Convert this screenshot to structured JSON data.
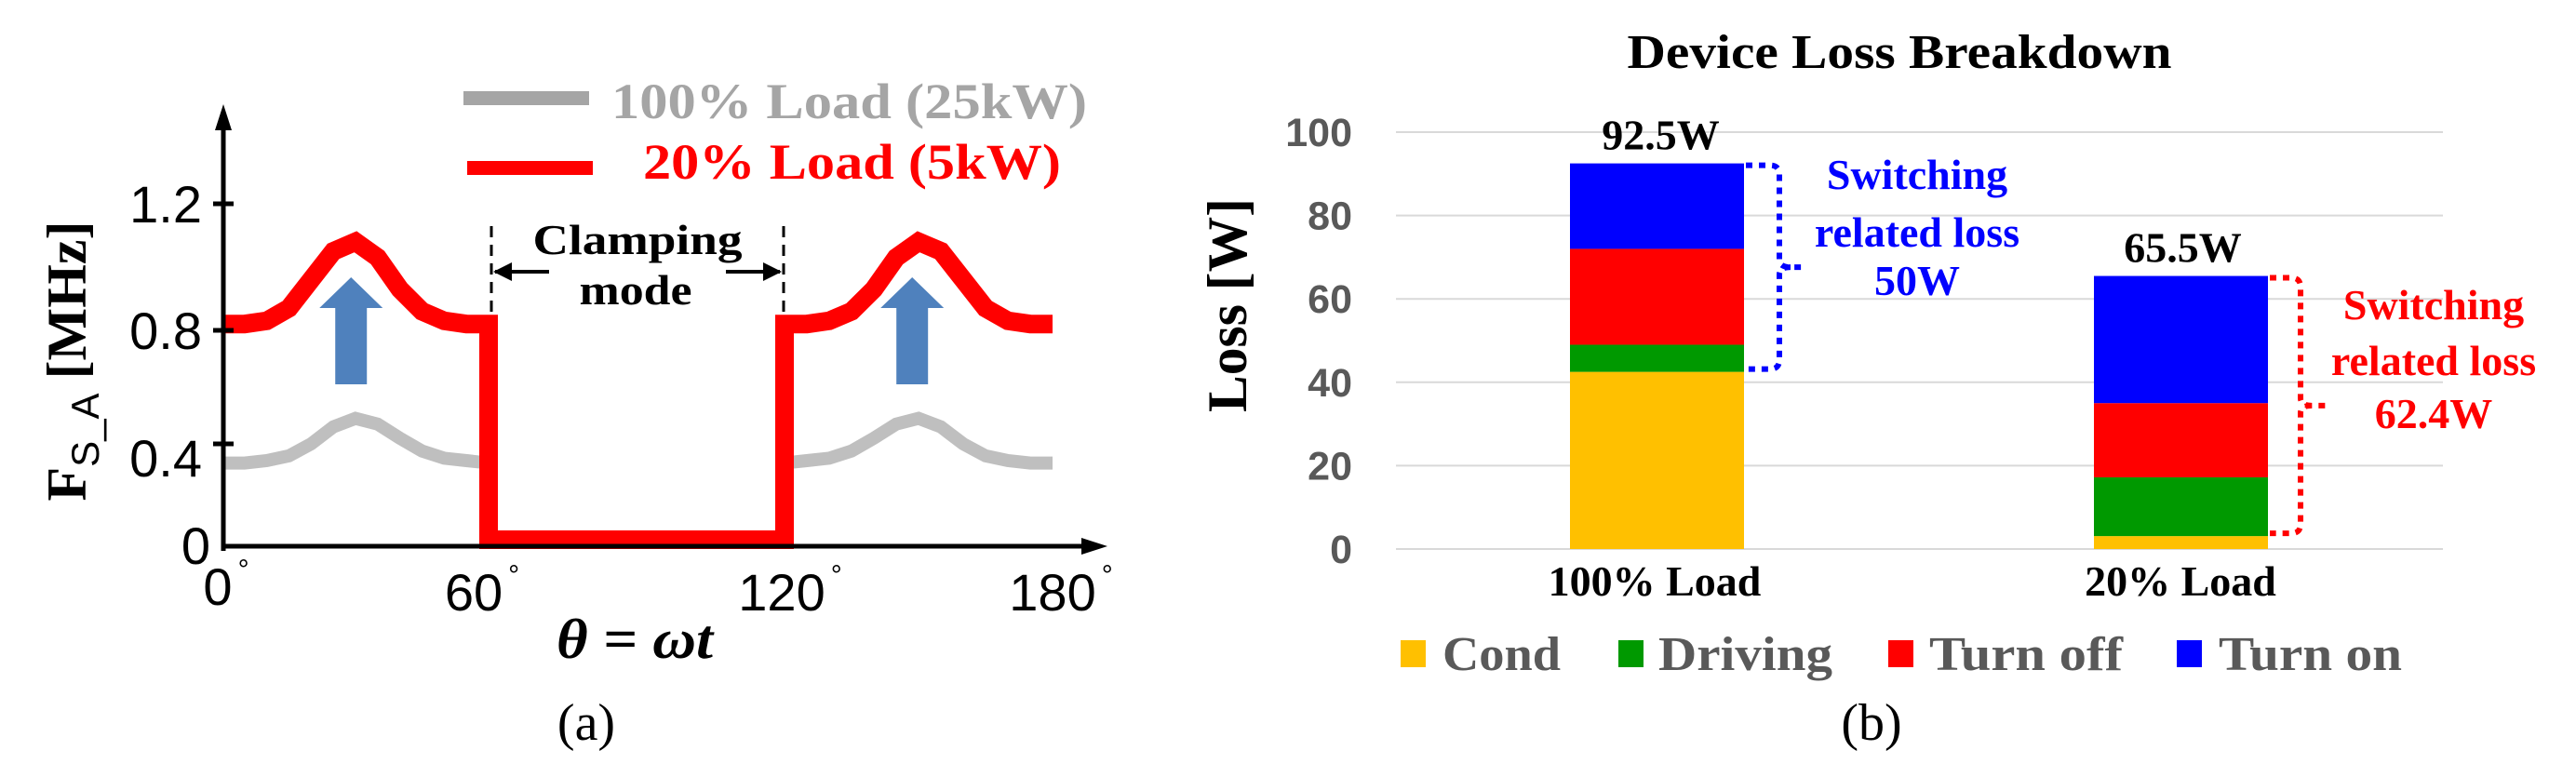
{
  "figure": {
    "panel_a_caption": "(a)",
    "panel_b_caption": "(b)"
  },
  "chart_data": [
    {
      "type": "line",
      "panel": "(a)",
      "title": "",
      "xlabel": "θ = ωt",
      "ylabel": "F",
      "ylabel_subscript": "S_A",
      "ylabel_unit": " [MHz]",
      "xlim": [
        0,
        180
      ],
      "ylim": [
        0,
        1.3
      ],
      "x_ticks": [
        {
          "value": 0,
          "label": "0",
          "suffix": "°"
        },
        {
          "value": 60,
          "label": "60",
          "suffix": "°"
        },
        {
          "value": 120,
          "label": "120",
          "suffix": "°"
        },
        {
          "value": 180,
          "label": "180",
          "suffix": "°"
        }
      ],
      "y_ticks": [
        {
          "value": 0,
          "label": "0"
        },
        {
          "value": 0.4,
          "label": "0.4"
        },
        {
          "value": 0.8,
          "label": "0.8"
        },
        {
          "value": 1.2,
          "label": "1.2"
        }
      ],
      "grid": false,
      "legend_position": "top",
      "series": [
        {
          "name": "100% Load (25kW)",
          "color": "#BFBFBF",
          "legend_color": "#A5A5A5",
          "segments": [
            {
              "x": [
                0,
                5,
                10,
                15,
                20,
                25,
                30,
                35,
                40,
                45,
                50,
                55,
                60
              ],
              "y": [
                0.32,
                0.32,
                0.33,
                0.35,
                0.4,
                0.46,
                0.49,
                0.47,
                0.42,
                0.37,
                0.34,
                0.33,
                0.32
              ]
            },
            {
              "x": [
                120,
                125,
                130,
                135,
                140,
                145,
                150,
                155,
                160,
                165,
                170,
                175,
                180
              ],
              "y": [
                0.32,
                0.33,
                0.34,
                0.37,
                0.42,
                0.47,
                0.49,
                0.46,
                0.4,
                0.35,
                0.33,
                0.32,
                0.32
              ]
            }
          ]
        },
        {
          "name": "20% Load (5kW)",
          "color": "#FF0000",
          "legend_color": "#FF0000",
          "segments": [
            {
              "x": [
                0,
                5,
                10,
                15,
                20,
                25,
                30,
                35,
                40,
                45,
                50,
                55,
                60,
                60,
                120,
                120,
                125,
                130,
                135,
                140,
                145,
                150,
                155,
                160,
                165,
                170,
                175,
                180
              ],
              "y": [
                0.82,
                0.82,
                0.83,
                0.87,
                0.96,
                1.05,
                1.08,
                1.03,
                0.93,
                0.86,
                0.83,
                0.82,
                0.82,
                0,
                0,
                0.82,
                0.82,
                0.83,
                0.86,
                0.93,
                1.03,
                1.08,
                1.05,
                0.96,
                0.87,
                0.83,
                0.82,
                0.82
              ]
            }
          ]
        }
      ],
      "annotations": {
        "clamping_label_line1": "Clamping",
        "clamping_label_line2": "mode",
        "clamping_range": [
          60,
          120
        ],
        "increase_arrows_at": [
          29,
          149
        ],
        "increase_arrow_color": "#4F81BD"
      }
    },
    {
      "type": "bar",
      "stacked": true,
      "panel": "(b)",
      "title": "Device Loss Breakdown",
      "xlabel": "",
      "ylabel": "Loss [W]",
      "ylim": [
        0,
        100
      ],
      "y_ticks": [
        0,
        20,
        40,
        60,
        80,
        100
      ],
      "grid": true,
      "legend_position": "bottom",
      "categories": [
        "100% Load",
        "20% Load"
      ],
      "series": [
        {
          "name": "Cond",
          "color": "#FFC000",
          "values": [
            42.5,
            3.1
          ]
        },
        {
          "name": "Driving",
          "color": "#009900",
          "values": [
            6.5,
            14.1
          ]
        },
        {
          "name": "Turn off",
          "color": "#FF0000",
          "values": [
            23.0,
            17.8
          ]
        },
        {
          "name": "Turn on",
          "color": "#0000FF",
          "values": [
            20.5,
            30.5
          ]
        }
      ],
      "totals": [
        {
          "value": 92.5,
          "label": "92.5W"
        },
        {
          "value": 65.5,
          "label": "65.5W"
        }
      ],
      "annotations": [
        {
          "category": "100% Load",
          "line1": "Switching",
          "line2": "related loss",
          "line3": "50W",
          "value": 50,
          "color": "#0000FF",
          "range": [
            42.5,
            92.5
          ]
        },
        {
          "category": "20% Load",
          "line1": "Switching",
          "line2": "related loss",
          "line3": "62.4W",
          "value": 62.4,
          "color": "#FF0000",
          "range": [
            3.1,
            65.5
          ]
        }
      ]
    }
  ]
}
